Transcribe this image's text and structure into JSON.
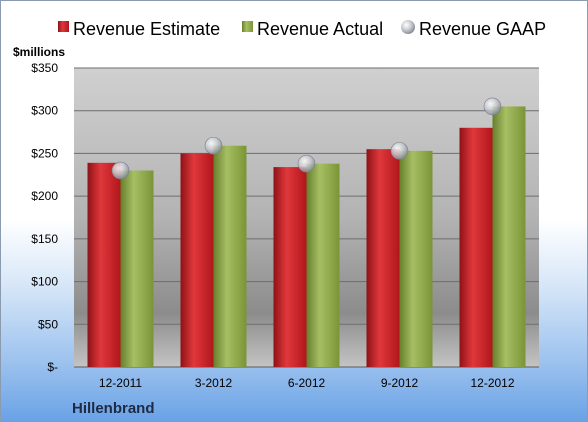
{
  "chart_data": {
    "type": "bar",
    "title": "",
    "xlabel": "",
    "ylabel": "",
    "unit_label": "$millions",
    "company_label": "Hillenbrand",
    "categories": [
      "12-2011",
      "3-2012",
      "6-2012",
      "9-2012",
      "12-2012"
    ],
    "series": [
      {
        "name": "Revenue Estimate",
        "type": "bar",
        "color": "#d42128",
        "values": [
          239,
          250,
          234,
          255,
          280
        ]
      },
      {
        "name": "Revenue Actual",
        "type": "bar",
        "color": "#8faa4b",
        "values": [
          230,
          259,
          238,
          253,
          305
        ]
      },
      {
        "name": "Revenue GAAP",
        "type": "marker",
        "color": "#b9bec7",
        "values": [
          230,
          259,
          238,
          253,
          305
        ]
      }
    ],
    "ylim": [
      0,
      350
    ],
    "yticks": [
      0,
      50,
      100,
      150,
      200,
      250,
      300,
      350
    ],
    "ytick_labels": [
      "$-",
      "$50",
      "$100",
      "$150",
      "$200",
      "$250",
      "$300",
      "$350"
    ],
    "grid": true,
    "legend_position": "top"
  }
}
